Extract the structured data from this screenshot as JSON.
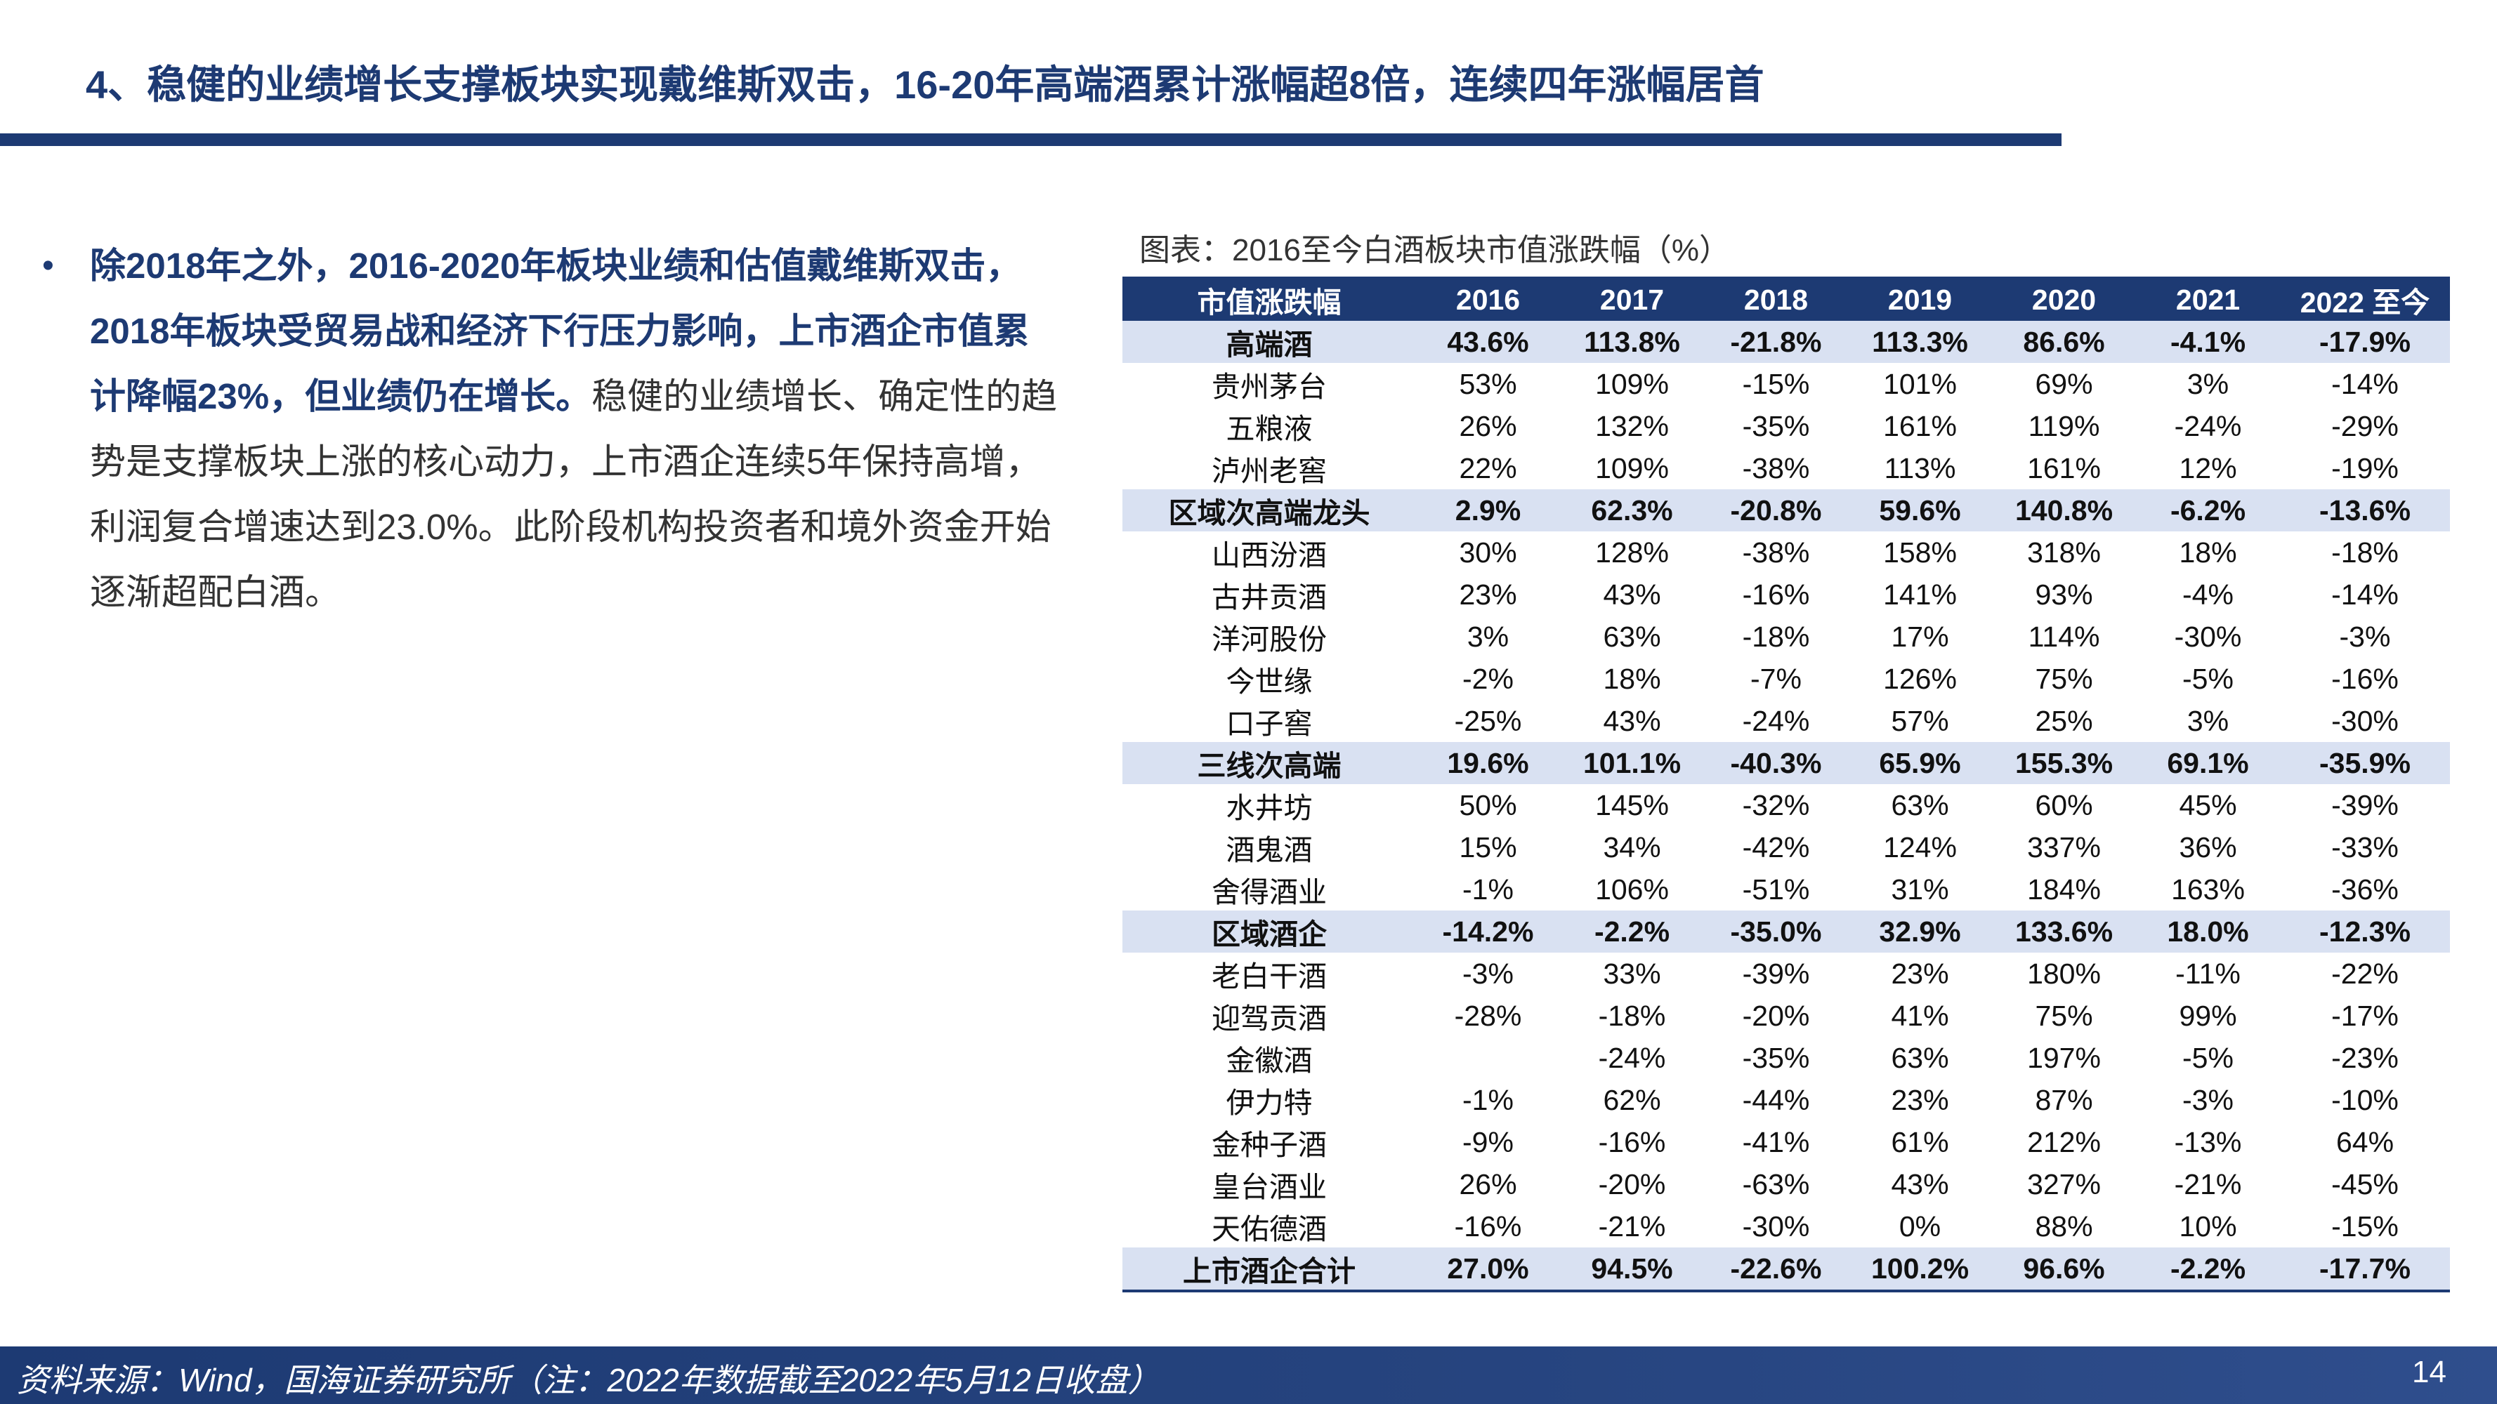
{
  "header": {
    "title": "4、稳健的业绩增长支撑板块实现戴维斯双击，16-20年高端酒累计涨幅超8倍，连续四年涨幅居首"
  },
  "bullet": {
    "strong_text": "除2018年之外，2016-2020年板块业绩和估值戴维斯双击，2018年板块受贸易战和经济下行压力影响，上市酒企市值累计降幅23%，但业绩仍在增长。",
    "normal_text": "稳健的业绩增长、确定性的趋势是支撑板块上涨的核心动力，上市酒企连续5年保持高增，利润复合增速达到23.0%。此阶段机构投资者和境外资金开始逐渐超配白酒。"
  },
  "table": {
    "caption": "图表：2016至今白酒板块市值涨跌幅（%）",
    "headers": [
      "市值涨跌幅",
      "2016",
      "2017",
      "2018",
      "2019",
      "2020",
      "2021",
      "2022 至今"
    ],
    "rows": [
      {
        "group": true,
        "cells": [
          "高端酒",
          "43.6%",
          "113.8%",
          "-21.8%",
          "113.3%",
          "86.6%",
          "-4.1%",
          "-17.9%"
        ]
      },
      {
        "group": false,
        "cells": [
          "贵州茅台",
          "53%",
          "109%",
          "-15%",
          "101%",
          "69%",
          "3%",
          "-14%"
        ]
      },
      {
        "group": false,
        "cells": [
          "五粮液",
          "26%",
          "132%",
          "-35%",
          "161%",
          "119%",
          "-24%",
          "-29%"
        ]
      },
      {
        "group": false,
        "cells": [
          "泸州老窖",
          "22%",
          "109%",
          "-38%",
          "113%",
          "161%",
          "12%",
          "-19%"
        ]
      },
      {
        "group": true,
        "cells": [
          "区域次高端龙头",
          "2.9%",
          "62.3%",
          "-20.8%",
          "59.6%",
          "140.8%",
          "-6.2%",
          "-13.6%"
        ]
      },
      {
        "group": false,
        "cells": [
          "山西汾酒",
          "30%",
          "128%",
          "-38%",
          "158%",
          "318%",
          "18%",
          "-18%"
        ]
      },
      {
        "group": false,
        "cells": [
          "古井贡酒",
          "23%",
          "43%",
          "-16%",
          "141%",
          "93%",
          "-4%",
          "-14%"
        ]
      },
      {
        "group": false,
        "cells": [
          "洋河股份",
          "3%",
          "63%",
          "-18%",
          "17%",
          "114%",
          "-30%",
          "-3%"
        ]
      },
      {
        "group": false,
        "cells": [
          "今世缘",
          "-2%",
          "18%",
          "-7%",
          "126%",
          "75%",
          "-5%",
          "-16%"
        ]
      },
      {
        "group": false,
        "cells": [
          "口子窖",
          "-25%",
          "43%",
          "-24%",
          "57%",
          "25%",
          "3%",
          "-30%"
        ]
      },
      {
        "group": true,
        "cells": [
          "三线次高端",
          "19.6%",
          "101.1%",
          "-40.3%",
          "65.9%",
          "155.3%",
          "69.1%",
          "-35.9%"
        ]
      },
      {
        "group": false,
        "cells": [
          "水井坊",
          "50%",
          "145%",
          "-32%",
          "63%",
          "60%",
          "45%",
          "-39%"
        ]
      },
      {
        "group": false,
        "cells": [
          "酒鬼酒",
          "15%",
          "34%",
          "-42%",
          "124%",
          "337%",
          "36%",
          "-33%"
        ]
      },
      {
        "group": false,
        "cells": [
          "舍得酒业",
          "-1%",
          "106%",
          "-51%",
          "31%",
          "184%",
          "163%",
          "-36%"
        ]
      },
      {
        "group": true,
        "cells": [
          "区域酒企",
          "-14.2%",
          "-2.2%",
          "-35.0%",
          "32.9%",
          "133.6%",
          "18.0%",
          "-12.3%"
        ]
      },
      {
        "group": false,
        "cells": [
          "老白干酒",
          "-3%",
          "33%",
          "-39%",
          "23%",
          "180%",
          "-11%",
          "-22%"
        ]
      },
      {
        "group": false,
        "cells": [
          "迎驾贡酒",
          "-28%",
          "-18%",
          "-20%",
          "41%",
          "75%",
          "99%",
          "-17%"
        ]
      },
      {
        "group": false,
        "cells": [
          "金徽酒",
          "",
          "-24%",
          "-35%",
          "63%",
          "197%",
          "-5%",
          "-23%"
        ]
      },
      {
        "group": false,
        "cells": [
          "伊力特",
          "-1%",
          "62%",
          "-44%",
          "23%",
          "87%",
          "-3%",
          "-10%"
        ]
      },
      {
        "group": false,
        "cells": [
          "金种子酒",
          "-9%",
          "-16%",
          "-41%",
          "61%",
          "212%",
          "-13%",
          "64%"
        ]
      },
      {
        "group": false,
        "cells": [
          "皇台酒业",
          "26%",
          "-20%",
          "-63%",
          "43%",
          "327%",
          "-21%",
          "-45%"
        ]
      },
      {
        "group": false,
        "cells": [
          "天佑德酒",
          "-16%",
          "-21%",
          "-30%",
          "0%",
          "88%",
          "10%",
          "-15%"
        ]
      },
      {
        "group": true,
        "cells": [
          "上市酒企合计",
          "27.0%",
          "94.5%",
          "-22.6%",
          "100.2%",
          "96.6%",
          "-2.2%",
          "-17.7%"
        ]
      }
    ]
  },
  "footer": {
    "source": "资料来源：Wind，国海证券研究所（注：2022年数据截至2022年5月12日收盘）",
    "page_number": "14"
  },
  "colors": {
    "primary": "#1d3a73",
    "group_row": "#d9e1f2"
  }
}
